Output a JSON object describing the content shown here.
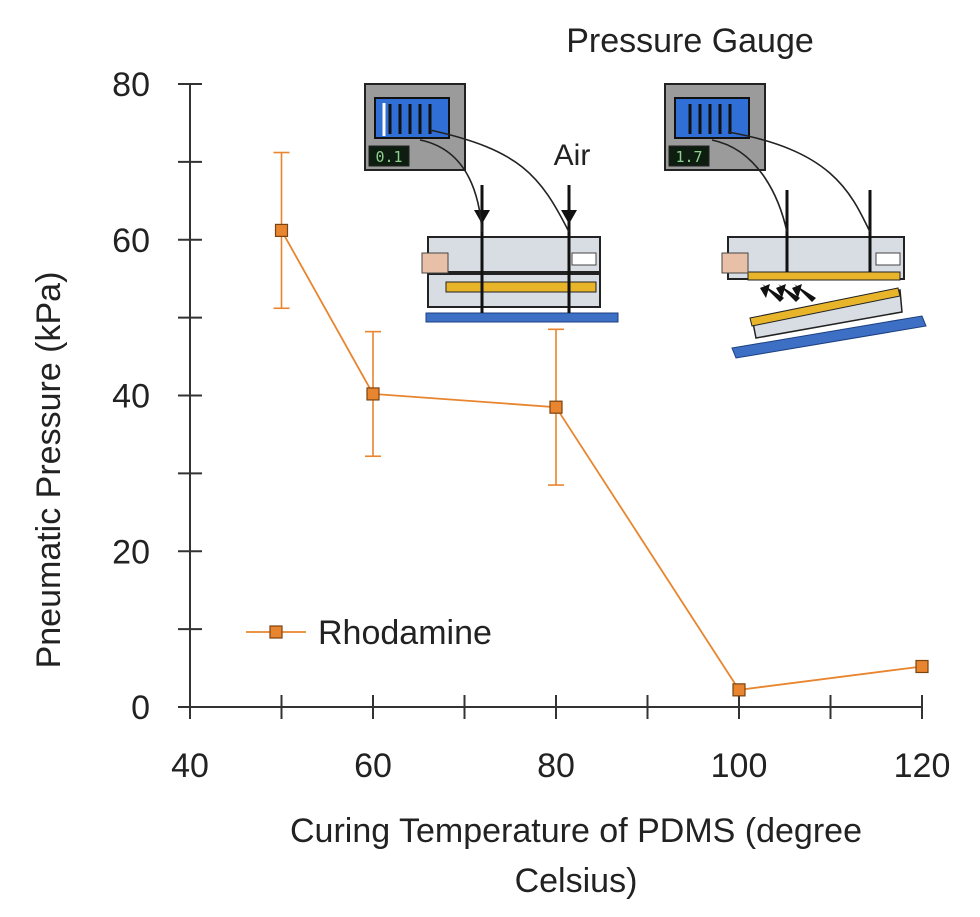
{
  "chart_data": {
    "type": "scatter",
    "title": "",
    "xlabel_lines": [
      "Curing Temperature of PDMS (degree",
      "Celsius)"
    ],
    "ylabel": "Pneumatic Pressure (kPa)",
    "xlim": [
      40,
      120
    ],
    "ylim": [
      0,
      80
    ],
    "x_ticks": [
      40,
      60,
      80,
      100,
      120
    ],
    "y_ticks": [
      0,
      20,
      40,
      60,
      80
    ],
    "x_minor_step": 10,
    "y_minor_step": 10,
    "grid": false,
    "legend_position": "lower-left",
    "series": [
      {
        "name": "Rhodamine",
        "color": "#e8852e",
        "marker": "square",
        "points": [
          {
            "x": 50,
            "y": 61.2,
            "err": 10.0
          },
          {
            "x": 60,
            "y": 40.2,
            "err": 8.0
          },
          {
            "x": 80,
            "y": 38.5,
            "err": 10.0
          },
          {
            "x": 100,
            "y": 2.2,
            "err": 0
          },
          {
            "x": 120,
            "y": 5.2,
            "err": 0
          }
        ]
      }
    ]
  },
  "inset": {
    "title": "Pressure Gauge",
    "air_label": "Air",
    "gauge_left_reading": "0.1",
    "gauge_right_reading": "1.7",
    "colors": {
      "gauge_blue": "#2f6fd6",
      "pdms_yellow": "#e8b52a",
      "substrate_blue": "#3d6fc4"
    }
  }
}
